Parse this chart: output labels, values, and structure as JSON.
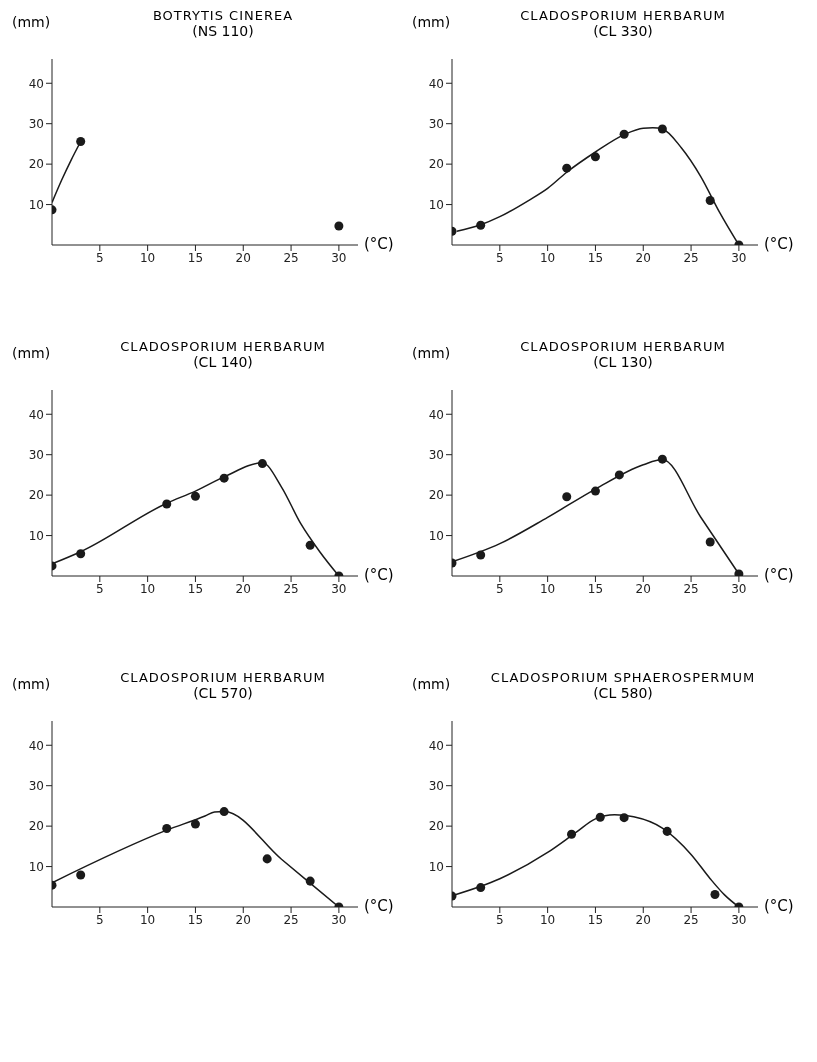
{
  "chart_data": [
    {
      "type": "scatter",
      "title": "BOTRYTIS CINEREA",
      "subtitle": "(NS 110)",
      "xlabel": "(°C)",
      "ylabel": "(mm)",
      "xlim": [
        0,
        32
      ],
      "ylim": [
        0,
        46
      ],
      "xticks": [
        5,
        10,
        15,
        20,
        25,
        30
      ],
      "yticks": [
        10,
        20,
        30,
        40
      ],
      "series": [
        {
          "type": "scatter",
          "color": "#1a1a1a",
          "marker": "circle",
          "x": [
            0,
            3,
            30
          ],
          "values": [
            8.7,
            25.6,
            4.7
          ]
        },
        {
          "type": "line",
          "color": "#1a1a1a",
          "marker": "none",
          "x": [
            0,
            1,
            2,
            3
          ],
          "values": [
            10.5,
            16,
            21,
            25.6
          ]
        }
      ]
    },
    {
      "type": "scatter",
      "title": "CLADOSPORIUM HERBARUM",
      "subtitle": "(CL 330)",
      "xlabel": "(°C)",
      "ylabel": "(mm)",
      "xlim": [
        0,
        32
      ],
      "ylim": [
        0,
        46
      ],
      "xticks": [
        5,
        10,
        15,
        20,
        25,
        30
      ],
      "yticks": [
        10,
        20,
        30,
        40
      ],
      "series": [
        {
          "type": "scatter",
          "color": "#1a1a1a",
          "marker": "circle",
          "x": [
            0,
            3,
            12,
            15,
            18,
            22,
            27,
            30
          ],
          "values": [
            3.4,
            4.9,
            19,
            21.8,
            27.4,
            28.7,
            11,
            0
          ]
        },
        {
          "type": "line",
          "color": "#1a1a1a",
          "marker": "none",
          "x": [
            0.5,
            3,
            5,
            8,
            10,
            12,
            15,
            18,
            20,
            21,
            22,
            24,
            26,
            28,
            30
          ],
          "values": [
            3.4,
            5,
            7,
            11,
            14,
            18,
            23,
            27.3,
            28.9,
            29,
            28.7,
            24,
            17,
            8,
            0
          ]
        }
      ]
    },
    {
      "type": "scatter",
      "title": "CLADOSPORIUM HERBARUM",
      "subtitle": "(CL 140)",
      "xlabel": "(°C)",
      "ylabel": "(mm)",
      "xlim": [
        0,
        32
      ],
      "ylim": [
        0,
        46
      ],
      "xticks": [
        5,
        10,
        15,
        20,
        25,
        30
      ],
      "yticks": [
        10,
        20,
        30,
        40
      ],
      "series": [
        {
          "type": "scatter",
          "color": "#1a1a1a",
          "marker": "circle",
          "x": [
            0,
            3,
            12,
            15,
            18,
            22,
            27,
            30
          ],
          "values": [
            2.5,
            5.5,
            17.8,
            19.7,
            24.2,
            27.8,
            7.6,
            0
          ]
        },
        {
          "type": "line",
          "color": "#1a1a1a",
          "marker": "none",
          "x": [
            0,
            3,
            12,
            15,
            18,
            22,
            24,
            26,
            28,
            30
          ],
          "values": [
            3,
            6,
            18,
            21,
            24.5,
            28,
            22,
            13,
            6,
            0
          ]
        }
      ]
    },
    {
      "type": "scatter",
      "title": "CLADOSPORIUM HERBARUM",
      "subtitle": "(CL 130)",
      "xlabel": "(°C)",
      "ylabel": "(mm)",
      "xlim": [
        0,
        32
      ],
      "ylim": [
        0,
        46
      ],
      "xticks": [
        5,
        10,
        15,
        20,
        25,
        30
      ],
      "yticks": [
        10,
        20,
        30,
        40
      ],
      "series": [
        {
          "type": "scatter",
          "color": "#1a1a1a",
          "marker": "circle",
          "x": [
            0,
            3,
            12,
            15,
            17.5,
            22,
            27,
            30
          ],
          "values": [
            3.2,
            5.2,
            19.6,
            21,
            25,
            28.9,
            8.4,
            0.5
          ]
        },
        {
          "type": "line",
          "color": "#1a1a1a",
          "marker": "none",
          "x": [
            0,
            5,
            10,
            15,
            20,
            22,
            26,
            30
          ],
          "values": [
            3.5,
            8,
            14.5,
            21.5,
            27.5,
            28.8,
            14.6,
            0.5
          ]
        }
      ]
    },
    {
      "type": "scatter",
      "title": "CLADOSPORIUM HERBARUM",
      "subtitle": "(CL 570)",
      "xlabel": "(°C)",
      "ylabel": "(mm)",
      "xlim": [
        0,
        32
      ],
      "ylim": [
        0,
        46
      ],
      "xticks": [
        5,
        10,
        15,
        20,
        25,
        30
      ],
      "yticks": [
        10,
        20,
        30,
        40
      ],
      "series": [
        {
          "type": "scatter",
          "color": "#1a1a1a",
          "marker": "circle",
          "x": [
            0,
            3,
            12,
            15,
            18,
            22.5,
            27,
            30
          ],
          "values": [
            5.4,
            7.9,
            19.4,
            20.5,
            23.6,
            11.9,
            6.4,
            0
          ]
        },
        {
          "type": "line",
          "color": "#1a1a1a",
          "marker": "none",
          "x": [
            0,
            12,
            16,
            17,
            18,
            24,
            30
          ],
          "values": [
            6,
            19,
            22.5,
            23.5,
            23.6,
            11.8,
            0
          ]
        }
      ]
    },
    {
      "type": "scatter",
      "title": "CLADOSPORIUM SPHAEROSPERMUM",
      "subtitle": "(CL 580)",
      "xlabel": "(°C)",
      "ylabel": "(mm)",
      "xlim": [
        0,
        32
      ],
      "ylim": [
        0,
        46
      ],
      "xticks": [
        5,
        10,
        15,
        20,
        25,
        30
      ],
      "yticks": [
        10,
        20,
        30,
        40
      ],
      "series": [
        {
          "type": "scatter",
          "color": "#1a1a1a",
          "marker": "circle",
          "x": [
            0,
            3,
            12.5,
            15.5,
            18,
            22.5,
            27.5,
            30
          ],
          "values": [
            2.7,
            4.8,
            18,
            22.2,
            22.1,
            18.7,
            3.1,
            0
          ]
        },
        {
          "type": "line",
          "color": "#1a1a1a",
          "marker": "none",
          "x": [
            0,
            5,
            10,
            13,
            15,
            17,
            19,
            22,
            25,
            27,
            28.5,
            30
          ],
          "values": [
            2.8,
            7,
            13.5,
            18.5,
            21.8,
            22.8,
            22.3,
            19.5,
            13,
            7,
            3,
            0
          ]
        }
      ]
    }
  ]
}
